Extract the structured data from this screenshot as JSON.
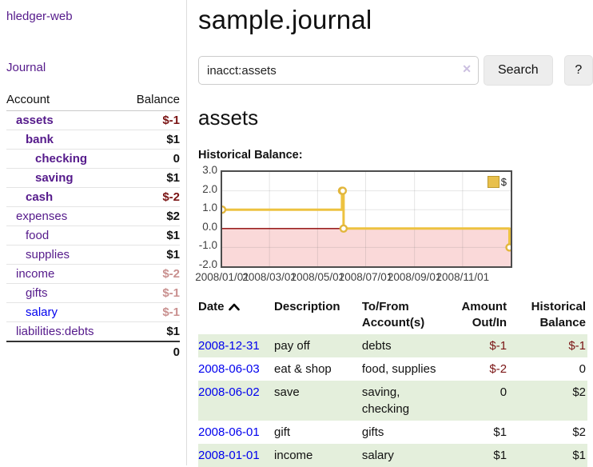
{
  "sidebar": {
    "brand": "hledger-web",
    "journal_link": "Journal",
    "accounts_header": {
      "account": "Account",
      "balance": "Balance"
    },
    "accounts": [
      {
        "name": "assets",
        "depth": 1,
        "bold": true,
        "link_color": "purple",
        "balance": "$-1",
        "balance_class": "neg"
      },
      {
        "name": "bank",
        "depth": 2,
        "bold": true,
        "link_color": "purple",
        "balance": "$1",
        "balance_class": "pos"
      },
      {
        "name": "checking",
        "depth": 3,
        "bold": true,
        "link_color": "purple",
        "balance": "0",
        "balance_class": "pos"
      },
      {
        "name": "saving",
        "depth": 3,
        "bold": true,
        "link_color": "purple",
        "balance": "$1",
        "balance_class": "pos"
      },
      {
        "name": "cash",
        "depth": 2,
        "bold": true,
        "link_color": "purple",
        "balance": "$-2",
        "balance_class": "neg"
      },
      {
        "name": "expenses",
        "depth": 1,
        "bold": false,
        "link_color": "purple",
        "balance": "$2",
        "balance_class": "pos"
      },
      {
        "name": "food",
        "depth": 2,
        "bold": false,
        "link_color": "purple",
        "balance": "$1",
        "balance_class": "pos"
      },
      {
        "name": "supplies",
        "depth": 2,
        "bold": false,
        "link_color": "purple",
        "balance": "$1",
        "balance_class": "pos"
      },
      {
        "name": "income",
        "depth": 1,
        "bold": false,
        "link_color": "purple",
        "balance": "$-2",
        "balance_class": "neg-dim"
      },
      {
        "name": "gifts",
        "depth": 2,
        "bold": false,
        "link_color": "purple",
        "balance": "$-1",
        "balance_class": "neg-dim"
      },
      {
        "name": "salary",
        "depth": 2,
        "bold": false,
        "link_color": "blue",
        "balance": "$-1",
        "balance_class": "neg-dim"
      },
      {
        "name": "liabilities:debts",
        "depth": 1,
        "bold": false,
        "link_color": "purple",
        "balance": "$1",
        "balance_class": "pos"
      }
    ],
    "total": "0"
  },
  "header": {
    "title": "sample.journal"
  },
  "search": {
    "value": "inacct:assets",
    "clear_icon": "✕",
    "button_label": "Search",
    "help_label": "?"
  },
  "account_page": {
    "title": "assets",
    "chart_label": "Historical Balance:"
  },
  "chart_data": {
    "type": "line",
    "step": true,
    "title": "Historical Balance:",
    "x_range": [
      "2008-01-01",
      "2009-01-01"
    ],
    "ylim": [
      -2.0,
      3.0
    ],
    "y_ticks": [
      3.0,
      2.0,
      1.0,
      0.0,
      -1.0,
      -2.0
    ],
    "x_ticks": [
      "2008/01/01",
      "2008/03/01",
      "2008/05/01",
      "2008/07/01",
      "2008/09/01",
      "2008/11/01"
    ],
    "series": [
      {
        "name": "$",
        "color": "#edc240",
        "points": [
          [
            "2008-01-01",
            1
          ],
          [
            "2008-06-01",
            2
          ],
          [
            "2008-06-02",
            2
          ],
          [
            "2008-06-03",
            0
          ],
          [
            "2008-12-31",
            -1
          ]
        ]
      }
    ],
    "legend_position": "top-right",
    "grid": true,
    "negative_region_color": "#fad9d9",
    "zero_line_color": "#8b0000"
  },
  "transactions": {
    "columns": [
      {
        "label": "Date",
        "sorted": "ascending"
      },
      {
        "label": "Description"
      },
      {
        "label": "To/From Account(s)"
      },
      {
        "label": "Amount Out/In"
      },
      {
        "label": "Historical Balance"
      }
    ],
    "rows": [
      {
        "date": "2008-12-31",
        "description": "pay off",
        "accounts": "debts",
        "amount": "$-1",
        "amount_neg": true,
        "balance": "$-1",
        "balance_neg": true,
        "shaded": true
      },
      {
        "date": "2008-06-03",
        "description": "eat & shop",
        "accounts": "food, supplies",
        "amount": "$-2",
        "amount_neg": true,
        "balance": "0",
        "balance_neg": false,
        "shaded": false
      },
      {
        "date": "2008-06-02",
        "description": "save",
        "accounts": "saving, checking",
        "amount": "0",
        "amount_neg": false,
        "balance": "$2",
        "balance_neg": false,
        "shaded": true
      },
      {
        "date": "2008-06-01",
        "description": "gift",
        "accounts": "gifts",
        "amount": "$1",
        "amount_neg": false,
        "balance": "$2",
        "balance_neg": false,
        "shaded": false
      },
      {
        "date": "2008-01-01",
        "description": "income",
        "accounts": "salary",
        "amount": "$1",
        "amount_neg": false,
        "balance": "$1",
        "balance_neg": false,
        "shaded": true
      }
    ]
  },
  "colors": {
    "link_visited": "#551a8b",
    "link_unvisited": "#0000ee",
    "negative_dark": "#7a1414",
    "negative_dim": "#c9908f",
    "row_stripe_green": "#e4efdc",
    "series_gold": "#edc240"
  }
}
